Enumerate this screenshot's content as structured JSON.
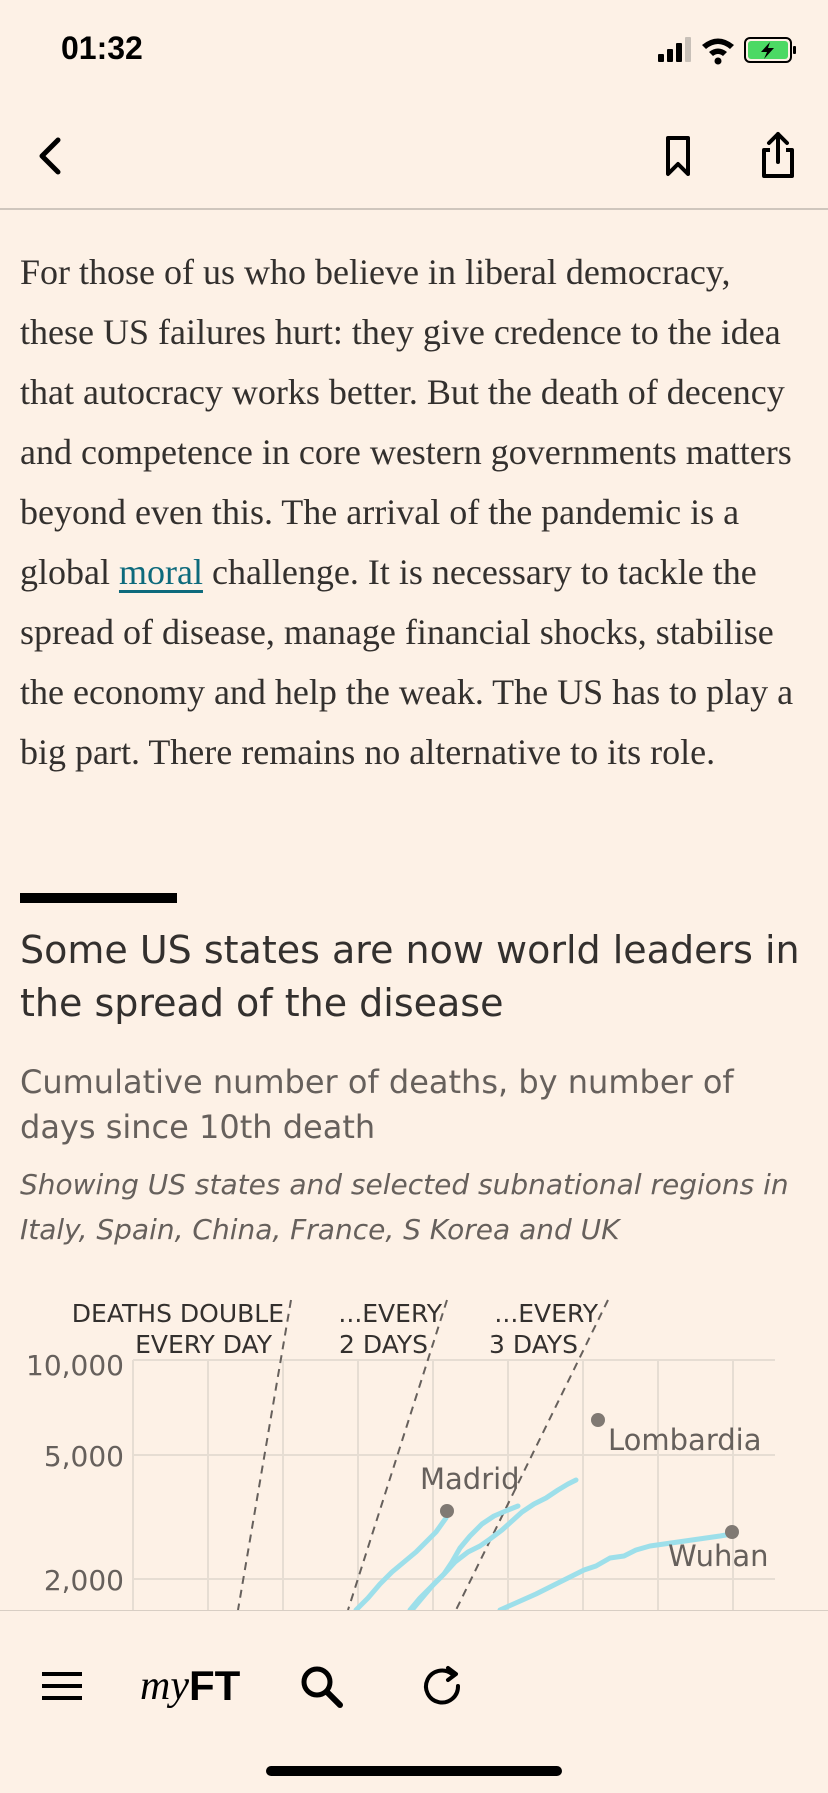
{
  "status_bar": {
    "time": "01:32"
  },
  "article": {
    "text_before_link": "For those of us who believe in liberal democracy, these US failures hurt: they give credence to the idea that autocracy works better. But the death of decency and competence in core western governments matters beyond even this. The arrival of the pandemic is a global ",
    "link_text": "moral",
    "text_after_link": " challenge. It is necessary to tackle the spread of disease, manage financial shocks, stabilise the economy and help the weak. The US has to play a big part. There remains no alternative to its role."
  },
  "chart": {
    "title": "Some US states are now world leaders in the spread of the disease",
    "subtitle": "Cumulative number of deaths, by number of days since 10th death",
    "note": "Showing US states and selected subnational regions in Italy, Spain, China, France, S Korea and UK"
  },
  "chart_data": {
    "type": "line",
    "title": "Some US states are now world leaders in the spread of the disease",
    "subtitle": "Cumulative number of deaths, by number of days since 10th death",
    "y_scale": "log",
    "y_ticks": [
      "10,000",
      "5,000",
      "2,000"
    ],
    "y_tick_values": [
      10000,
      5000,
      2000
    ],
    "reference_lines": [
      {
        "label_line1": "DEATHS DOUBLE",
        "label_line2": "EVERY DAY",
        "doubling_days": 1
      },
      {
        "label_line1": "...EVERY",
        "label_line2": "2 DAYS",
        "doubling_days": 2
      },
      {
        "label_line1": "...EVERY",
        "label_line2": "3 DAYS",
        "doubling_days": 3
      }
    ],
    "series": [
      {
        "name": "Lombardia",
        "color": "#9ddfea"
      },
      {
        "name": "Madrid",
        "color": "#9ddfea"
      },
      {
        "name": "Wuhan",
        "color": "#9ddfea"
      }
    ],
    "grid": true
  },
  "bottom_bar": {
    "myft_prefix": "my",
    "myft_suffix": "FT"
  },
  "colors": {
    "background": "#fdf1e6",
    "link": "#0d6a7c",
    "series_line": "#9ddfea"
  }
}
